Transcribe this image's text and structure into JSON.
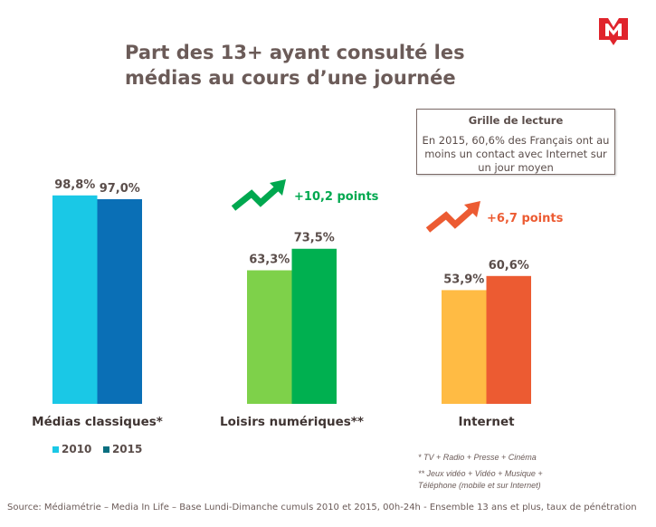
{
  "title_line1": "Part des 13+ ayant consulté les",
  "title_line2": "médias au cours d’une journée",
  "reading_box": {
    "heading": "Grille de lecture",
    "text": "En 2015, 60,6% des Français ont au moins un contact avec Internet sur un jour moyen"
  },
  "chart_data": {
    "type": "bar",
    "categories": [
      "Médias classiques*",
      "Loisirs numériques**",
      "Internet"
    ],
    "series": [
      {
        "name": "2010",
        "values": [
          98.8,
          63.3,
          53.9
        ],
        "labels": [
          "98,8%",
          "63,3%",
          "53,9%"
        ],
        "colors": [
          "#1ac8e6",
          "#7ed14a",
          "#ffbb44"
        ]
      },
      {
        "name": "2015",
        "values": [
          97.0,
          73.5,
          60.6
        ],
        "labels": [
          "97,0%",
          "73,5%",
          "60,6%"
        ],
        "colors": [
          "#0a6fb6",
          "#00b050",
          "#ec5b32"
        ]
      }
    ],
    "ylim": [
      0,
      100
    ],
    "legend_colors": [
      "#1ac8e6",
      "#0a6f80"
    ],
    "annotations": [
      {
        "category": "Loisirs numériques**",
        "text": "+10,2 points",
        "color": "#00a84f"
      },
      {
        "category": "Internet",
        "text": "+6,7 points",
        "color": "#ec5b32"
      }
    ]
  },
  "notes": [
    "* TV + Radio + Presse + Cinéma",
    "** Jeux vidéo + Vidéo + Musique +",
    "Téléphone (mobile et sur Internet)"
  ],
  "source": "Source: Médiamétrie – Media In Life – Base Lundi-Dimanche cumuls 2010 et 2015, 00h-24h - Ensemble 13 ans et plus, taux de pénétration"
}
